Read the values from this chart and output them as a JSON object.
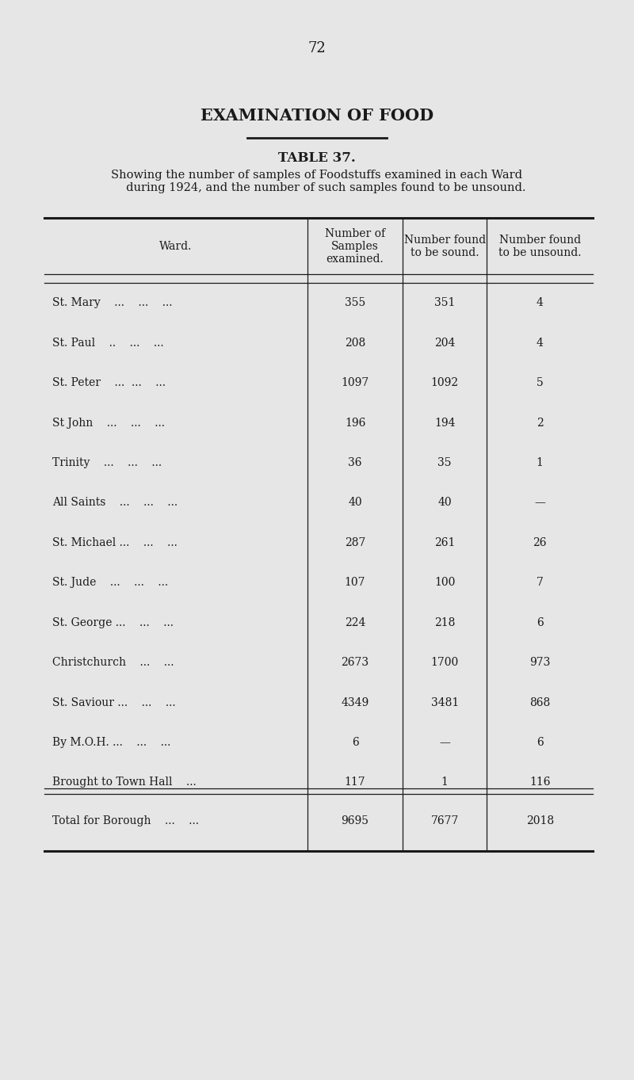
{
  "page_number": "72",
  "main_title": "EXAMINATION OF FOOD",
  "table_title": "TABLE 37.",
  "subtitle": "Showing the number of samples of Foodstuffs examined in each Ward\n     during 1924, and the number of such samples found to be unsound.",
  "col_headers": [
    "Ward.",
    "Number of\nSamples\nexamined.",
    "Number found\nto be sound.",
    "Number found\nto be unsound."
  ],
  "rows": [
    [
      "St. Mary    ...    ...    ...",
      "355",
      "351",
      "4"
    ],
    [
      "St. Paul    ..    ...    ...",
      "208",
      "204",
      "4"
    ],
    [
      "St. Peter    ...  ...    ...",
      "1097",
      "1092",
      "5"
    ],
    [
      "St John    ...    ...    ...",
      "196",
      "194",
      "2"
    ],
    [
      "Trinity    ...    ...    ...",
      "36",
      "35",
      "1"
    ],
    [
      "All Saints    ...    ...    ...",
      "40",
      "40",
      "—"
    ],
    [
      "St. Michael ...    ...    ...",
      "287",
      "261",
      "26"
    ],
    [
      "St. Jude    ...    ...    ...",
      "107",
      "100",
      "7"
    ],
    [
      "St. George ...    ...    ...",
      "224",
      "218",
      "6"
    ],
    [
      "Christchurch    ...    ...",
      "2673",
      "1700",
      "973"
    ],
    [
      "St. Saviour ...    ...    ...",
      "4349",
      "3481",
      "868"
    ],
    [
      "By M.O.H. ...    ...    ...",
      "6",
      "—",
      "6"
    ],
    [
      "Brought to Town Hall    ...",
      "117",
      "1",
      "116"
    ]
  ],
  "total_row": [
    "Total for Borough    ...    ...",
    "9695",
    "7677",
    "2018"
  ],
  "bg_color": "#e6e6e6",
  "text_color": "#1a1a1a",
  "font_family": "serif"
}
